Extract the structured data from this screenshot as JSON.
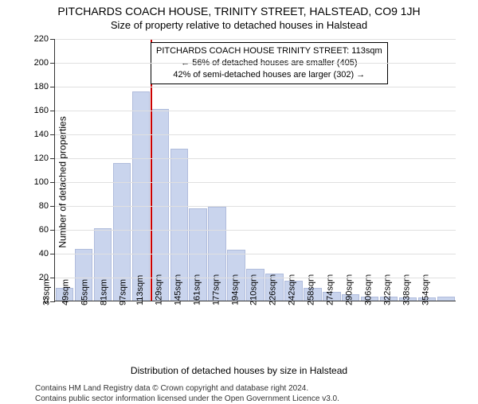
{
  "title_main": "PITCHARDS COACH HOUSE, TRINITY STREET, HALSTEAD, CO9 1JH",
  "title_sub": "Size of property relative to detached houses in Halstead",
  "y_axis_label": "Number of detached properties",
  "x_axis_label": "Distribution of detached houses by size in Halstead",
  "chart": {
    "type": "histogram",
    "ylim": [
      0,
      220
    ],
    "ytick_step": 20,
    "bar_fill": "#c9d4ed",
    "bar_stroke": "#b0bcdc",
    "grid_color": "#e0e0e0",
    "axis_color": "#333333",
    "background_color": "#ffffff",
    "vline_color": "#cc0000",
    "vline_category_index": 5,
    "categories": [
      "33sqm",
      "49sqm",
      "65sqm",
      "81sqm",
      "97sqm",
      "113sqm",
      "129sqm",
      "145sqm",
      "161sqm",
      "177sqm",
      "194sqm",
      "210sqm",
      "226sqm",
      "242sqm",
      "258sqm",
      "274sqm",
      "290sqm",
      "306sqm",
      "322sqm",
      "338sqm",
      "354sqm"
    ],
    "values": [
      10,
      43,
      60,
      115,
      175,
      160,
      127,
      77,
      78,
      42,
      26,
      22,
      16,
      10,
      7,
      5,
      3,
      3,
      2,
      2,
      3
    ]
  },
  "annotation": {
    "line1": "PITCHARDS COACH HOUSE TRINITY STREET: 113sqm",
    "line2": "← 56% of detached houses are smaller (405)",
    "line3": "42% of semi-detached houses are larger (302) →",
    "border_color": "#000000",
    "background": "#ffffff",
    "fontsize": 11
  },
  "credits": {
    "line1": "Contains HM Land Registry data © Crown copyright and database right 2024.",
    "line2": "Contains public sector information licensed under the Open Government Licence v3.0."
  }
}
